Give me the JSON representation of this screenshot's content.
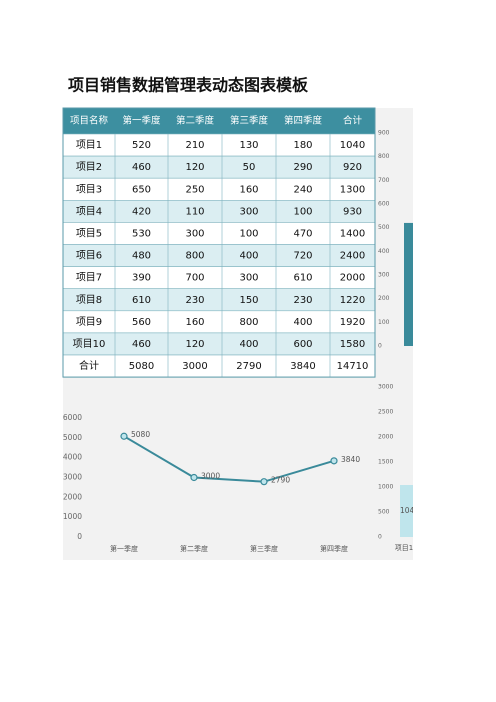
{
  "title": "项目销售数据管理表动态图表模板",
  "table": {
    "headers": [
      "项目名称",
      "第一季度",
      "第二季度",
      "第三季度",
      "第四季度",
      "合计"
    ],
    "rows": [
      [
        "项目1",
        "520",
        "210",
        "130",
        "180",
        "1040"
      ],
      [
        "项目2",
        "460",
        "120",
        "50",
        "290",
        "920"
      ],
      [
        "项目3",
        "650",
        "250",
        "160",
        "240",
        "1300"
      ],
      [
        "项目4",
        "420",
        "110",
        "300",
        "100",
        "930"
      ],
      [
        "项目5",
        "530",
        "300",
        "100",
        "470",
        "1400"
      ],
      [
        "项目6",
        "480",
        "800",
        "400",
        "720",
        "2400"
      ],
      [
        "项目7",
        "390",
        "700",
        "300",
        "610",
        "2000"
      ],
      [
        "项目8",
        "610",
        "230",
        "150",
        "230",
        "1220"
      ],
      [
        "项目9",
        "560",
        "160",
        "800",
        "400",
        "1920"
      ],
      [
        "项目10",
        "460",
        "120",
        "400",
        "600",
        "1580"
      ],
      [
        "合计",
        "5080",
        "3000",
        "2790",
        "3840",
        "14710"
      ]
    ]
  },
  "chart_data": [
    {
      "type": "line",
      "categories": [
        "第一季度",
        "第二季度",
        "第三季度",
        "第四季度"
      ],
      "values": [
        5080,
        3000,
        2790,
        3840
      ],
      "color": "#3a8a9a",
      "ylim": [
        0,
        6000
      ],
      "yticks": [
        0,
        1000,
        2000,
        3000,
        4000,
        5000,
        6000
      ]
    },
    {
      "type": "bar",
      "values": [
        520
      ],
      "color": "#3a8a9a",
      "ylim": [
        0,
        900
      ],
      "yticks": [
        0,
        100,
        200,
        300,
        400,
        500,
        600,
        700,
        800,
        900
      ]
    },
    {
      "type": "bar",
      "categories": [
        "项目1"
      ],
      "values": [
        1040
      ],
      "color": "#bfe5ec",
      "ylim": [
        0,
        3000
      ],
      "yticks": [
        0,
        500,
        1000,
        1500,
        2000,
        2500,
        3000
      ]
    }
  ]
}
